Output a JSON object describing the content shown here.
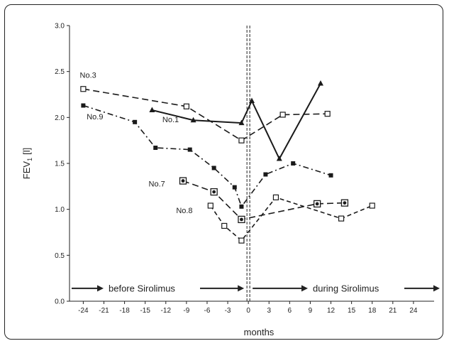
{
  "chart_data": {
    "type": "line",
    "title": "",
    "xlabel": "months",
    "ylabel_main": "FEV",
    "ylabel_sub": "1",
    "ylabel_unit": "[l]",
    "xlim": [
      -26,
      27
    ],
    "ylim": [
      0,
      3
    ],
    "x_ticks": [
      -24,
      -21,
      -18,
      -15,
      -12,
      -9,
      -6,
      -3,
      0,
      3,
      6,
      9,
      12,
      15,
      18,
      21,
      24
    ],
    "y_ticks": [
      "0.0",
      "0.5",
      "1.0",
      "1.5",
      "2.0",
      "2.5",
      "3.0"
    ],
    "grid": false,
    "phase_labels": {
      "before": "before Sirolimus",
      "during": "during Sirolimus"
    },
    "phase_arrow_y": 0.14,
    "divider_x": 0,
    "series": [
      {
        "name": "No.3",
        "marker": "open-square",
        "dash": "long-dash",
        "points": [
          [
            -24,
            2.31
          ],
          [
            -9,
            2.12
          ],
          [
            -1,
            1.75
          ],
          [
            5,
            2.03
          ],
          [
            11.5,
            2.04
          ]
        ]
      },
      {
        "name": "No.9",
        "marker": "filled-square",
        "dash": "dash-dot",
        "points": [
          [
            -24,
            2.13
          ],
          [
            -16.5,
            1.95
          ],
          [
            -13.5,
            1.67
          ],
          [
            -8.5,
            1.65
          ],
          [
            -5,
            1.45
          ],
          [
            -2,
            1.24
          ],
          [
            -1,
            1.03
          ],
          [
            2.5,
            1.38
          ],
          [
            6.5,
            1.5
          ],
          [
            12,
            1.37
          ]
        ]
      },
      {
        "name": "No.1",
        "marker": "filled-triangle",
        "dash": "solid",
        "points": [
          [
            -14,
            2.08
          ],
          [
            -8,
            1.97
          ],
          [
            -1,
            1.94
          ],
          [
            0.5,
            2.18
          ],
          [
            4.5,
            1.55
          ],
          [
            10.5,
            2.37
          ]
        ]
      },
      {
        "name": "No.7",
        "marker": "boxed-dot",
        "dash": "long-dash",
        "points": [
          [
            -9.5,
            1.31
          ],
          [
            -5,
            1.19
          ],
          [
            -1,
            0.89
          ],
          [
            10,
            1.06
          ],
          [
            14,
            1.07
          ]
        ]
      },
      {
        "name": "No.8",
        "marker": "open-square",
        "dash": "medium-dash",
        "points": [
          [
            -5.5,
            1.04
          ],
          [
            -3.5,
            0.82
          ],
          [
            -1,
            0.66
          ],
          [
            4,
            1.13
          ],
          [
            13.5,
            0.9
          ],
          [
            18,
            1.04
          ]
        ]
      }
    ],
    "series_labels": [
      {
        "text": "No.3",
        "x": -24.5,
        "y": 2.43
      },
      {
        "text": "No.9",
        "x": -23.5,
        "y": 1.98
      },
      {
        "text": "No.1",
        "x": -12.5,
        "y": 1.95
      },
      {
        "text": "No.7",
        "x": -14.5,
        "y": 1.25
      },
      {
        "text": "No.8",
        "x": -10.5,
        "y": 0.96
      }
    ]
  }
}
